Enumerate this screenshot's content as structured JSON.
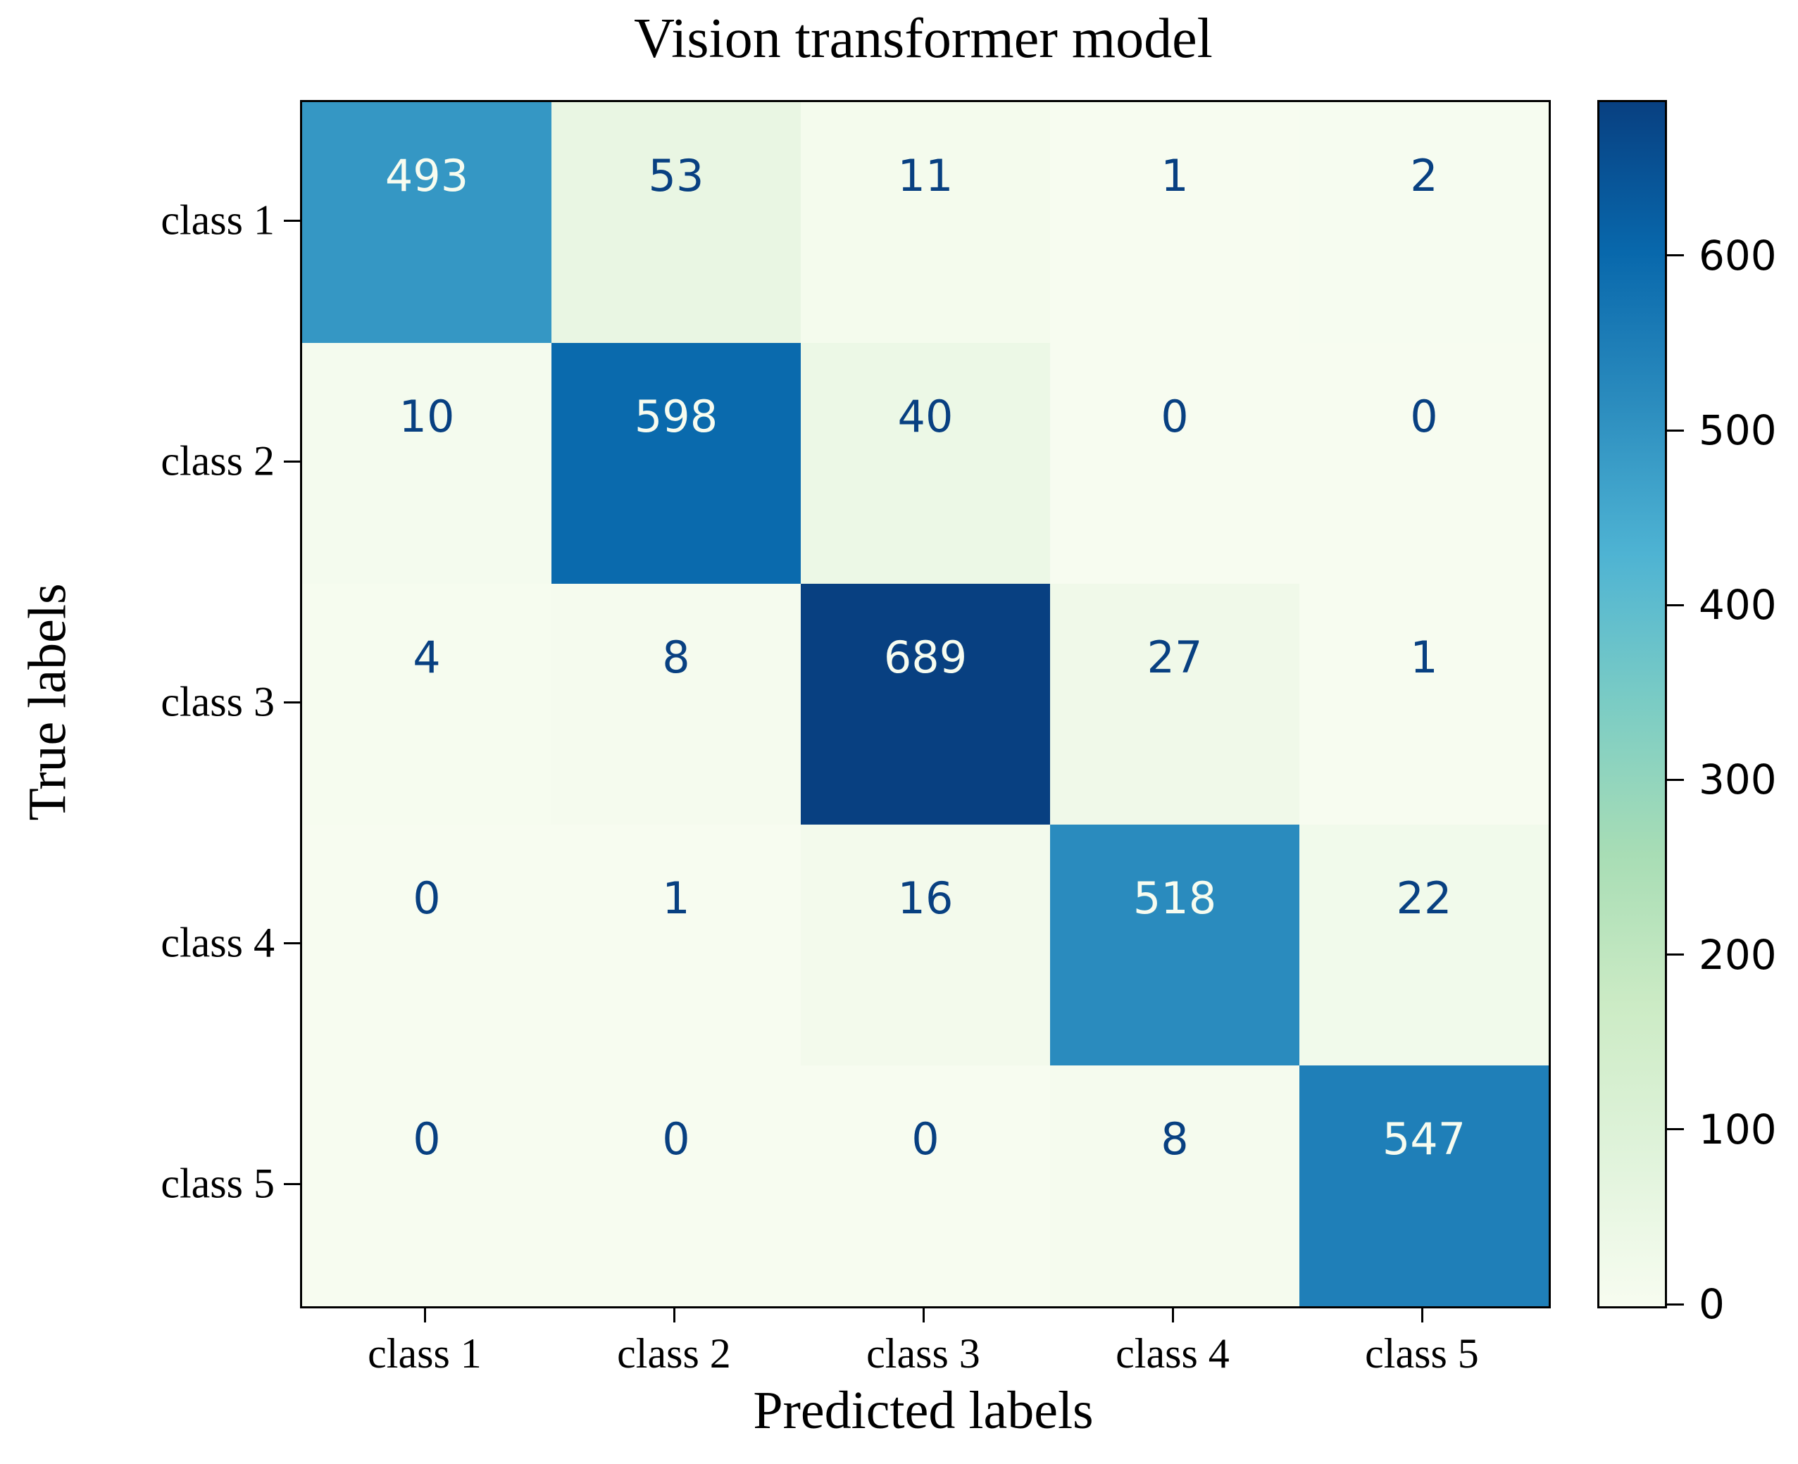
{
  "figure": {
    "background": "#ffffff",
    "spine_color": "#000000"
  },
  "chart_data": {
    "type": "heatmap",
    "title": "Vision transformer model",
    "xlabel": "Predicted labels",
    "ylabel": "True labels",
    "x_tick_labels": [
      "class 1",
      "class 2",
      "class 3",
      "class 4",
      "class 5"
    ],
    "y_tick_labels": [
      "class 1",
      "class 2",
      "class 3",
      "class 4",
      "class 5"
    ],
    "matrix": [
      [
        493,
        53,
        11,
        1,
        2
      ],
      [
        10,
        598,
        40,
        0,
        0
      ],
      [
        4,
        8,
        689,
        27,
        1
      ],
      [
        0,
        1,
        16,
        518,
        22
      ],
      [
        0,
        0,
        0,
        8,
        547
      ]
    ],
    "vmin": 0,
    "vmax": 689,
    "colormap": "GnBu",
    "colormap_stops": [
      "#f7fcf0",
      "#e0f3db",
      "#ccebc5",
      "#a8ddb5",
      "#7bccc4",
      "#4eb3d3",
      "#2b8cbe",
      "#0868ac",
      "#084081"
    ],
    "cell_text_color_dark": "#084081",
    "cell_text_color_light": "#f7fcf0",
    "colorbar_ticks": [
      0,
      100,
      200,
      300,
      400,
      500,
      600
    ],
    "legend_position": "right-colorbar",
    "grid": false
  }
}
